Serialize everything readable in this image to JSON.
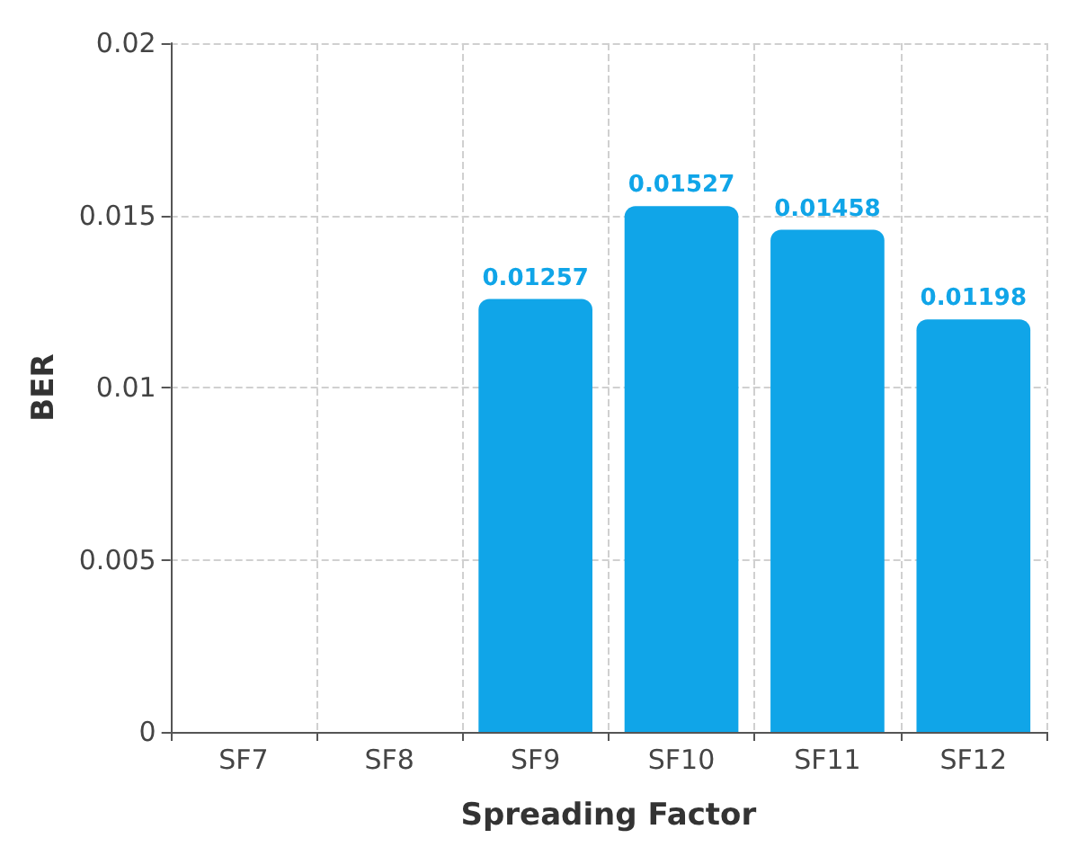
{
  "chart_data": {
    "type": "bar",
    "xlabel": "Spreading Factor",
    "ylabel": "BER",
    "categories": [
      "SF7",
      "SF8",
      "SF9",
      "SF10",
      "SF11",
      "SF12"
    ],
    "values": [
      null,
      null,
      0.01257,
      0.01527,
      0.01458,
      0.01198
    ],
    "value_labels": [
      null,
      null,
      "0.01257",
      "0.01527",
      "0.01458",
      "0.01198"
    ],
    "color": "#10a5e8",
    "ylim": [
      0,
      0.02
    ],
    "yticks": [
      0,
      0.005,
      0.01,
      0.015,
      0.02
    ],
    "grid": true
  }
}
